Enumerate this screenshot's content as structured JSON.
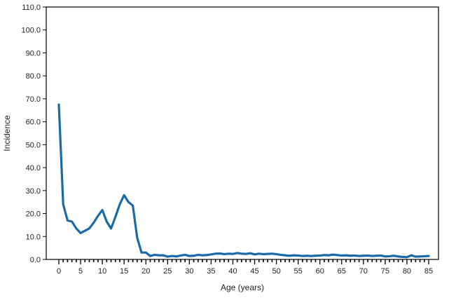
{
  "chart_data": {
    "type": "line",
    "title": "",
    "xlabel": "Age (years)",
    "ylabel": "Incidence",
    "xlim": [
      0,
      85
    ],
    "ylim": [
      0,
      110
    ],
    "grid": false,
    "x_ticks": [
      0,
      5,
      10,
      15,
      20,
      25,
      30,
      35,
      40,
      45,
      50,
      55,
      60,
      65,
      70,
      75,
      80,
      85
    ],
    "x_tick_labels": [
      "0",
      "5",
      "10",
      "15",
      "20",
      "25",
      "30",
      "35",
      "40",
      "45",
      "50",
      "55",
      "60",
      "65",
      "70",
      "75",
      "80",
      "85"
    ],
    "y_ticks": [
      0,
      10,
      20,
      30,
      40,
      50,
      60,
      70,
      80,
      90,
      100,
      110
    ],
    "y_tick_labels": [
      "0.0",
      "10.0",
      "20.0",
      "30.0",
      "40.0",
      "50.0",
      "60.0",
      "70.0",
      "80.0",
      "90.0",
      "100.0",
      "110.0"
    ],
    "line_color": "#1a6aa8",
    "series": [
      {
        "x": [
          0,
          1,
          2,
          3,
          4,
          5,
          6,
          7,
          8,
          9,
          10,
          11,
          12,
          13,
          14,
          15,
          16,
          17,
          18,
          19,
          20,
          21,
          22,
          23,
          24,
          25,
          26,
          27,
          28,
          29,
          30,
          31,
          32,
          33,
          34,
          35,
          36,
          37,
          38,
          39,
          40,
          41,
          42,
          43,
          44,
          45,
          46,
          47,
          48,
          49,
          50,
          51,
          52,
          53,
          54,
          55,
          56,
          57,
          58,
          59,
          60,
          61,
          62,
          63,
          64,
          65,
          66,
          67,
          68,
          69,
          70,
          71,
          72,
          73,
          74,
          75,
          76,
          77,
          78,
          79,
          80,
          81,
          82,
          83,
          84,
          85
        ],
        "values": [
          67.5,
          24,
          17,
          16.5,
          13.5,
          11.5,
          12.5,
          13.5,
          16,
          19,
          21.5,
          16.5,
          13.5,
          18.5,
          24,
          28,
          25,
          23.5,
          9.5,
          3,
          3,
          1.5,
          2,
          1.8,
          1.8,
          1.2,
          1.5,
          1.3,
          1.7,
          2,
          1.5,
          1.6,
          2,
          1.8,
          1.9,
          2.2,
          2.5,
          2.6,
          2.3,
          2.5,
          2.4,
          2.8,
          2.5,
          2.4,
          2.7,
          2.2,
          2.5,
          2.3,
          2.4,
          2.5,
          2.3,
          2,
          1.8,
          1.6,
          1.8,
          1.7,
          1.5,
          1.6,
          1.5,
          1.6,
          1.7,
          1.9,
          1.8,
          2.1,
          1.9,
          1.7,
          1.8,
          1.6,
          1.7,
          1.5,
          1.6,
          1.7,
          1.5,
          1.6,
          1.7,
          1.3,
          1.4,
          1.6,
          1.3,
          1.1,
          1,
          1.8,
          1.2,
          1.3,
          1.4,
          1.5
        ]
      }
    ]
  }
}
